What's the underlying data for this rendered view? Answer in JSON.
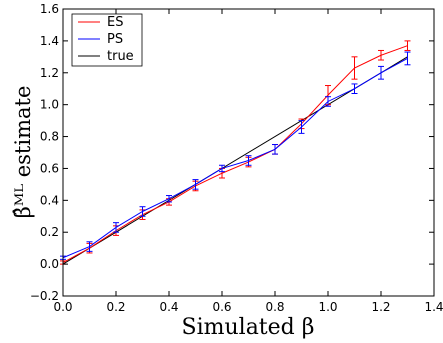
{
  "chart_data": {
    "type": "line",
    "xlabel": "Simulated β",
    "ylabel": "β̂ᴹᴸ estimate",
    "xlim": [
      0.0,
      1.4
    ],
    "ylim": [
      -0.2,
      1.6
    ],
    "xticks": [
      "0.0",
      "0.2",
      "0.4",
      "0.6",
      "0.8",
      "1.0",
      "1.2",
      "1.4"
    ],
    "yticks": [
      "−0.2",
      "0.0",
      "0.2",
      "0.4",
      "0.6",
      "0.8",
      "1.0",
      "1.2",
      "1.4",
      "1.6"
    ],
    "legend_position": "top-left",
    "grid": false,
    "series": [
      {
        "name": "ES",
        "color": "#ff0000",
        "x": [
          0.0,
          0.1,
          0.2,
          0.3,
          0.4,
          0.5,
          0.6,
          0.7,
          0.8,
          0.9,
          1.0,
          1.1,
          1.2,
          1.3
        ],
        "y": [
          0.01,
          0.1,
          0.21,
          0.31,
          0.39,
          0.49,
          0.57,
          0.64,
          0.72,
          0.88,
          1.06,
          1.23,
          1.31,
          1.37
        ],
        "err": [
          0.01,
          0.03,
          0.03,
          0.03,
          0.02,
          0.03,
          0.03,
          0.03,
          0.03,
          0.03,
          0.06,
          0.07,
          0.03,
          0.03
        ]
      },
      {
        "name": "PS",
        "color": "#0000ff",
        "x": [
          0.0,
          0.1,
          0.2,
          0.3,
          0.4,
          0.5,
          0.6,
          0.7,
          0.8,
          0.9,
          1.0,
          1.1,
          1.2,
          1.3
        ],
        "y": [
          0.04,
          0.11,
          0.23,
          0.33,
          0.41,
          0.5,
          0.6,
          0.65,
          0.72,
          0.86,
          1.02,
          1.1,
          1.2,
          1.29
        ],
        "err": [
          0.01,
          0.03,
          0.03,
          0.03,
          0.02,
          0.03,
          0.02,
          0.03,
          0.03,
          0.04,
          0.03,
          0.03,
          0.04,
          0.04
        ]
      },
      {
        "name": "true",
        "color": "#000000",
        "x": [
          0.0,
          1.3
        ],
        "y": [
          0.0,
          1.3
        ]
      }
    ]
  }
}
